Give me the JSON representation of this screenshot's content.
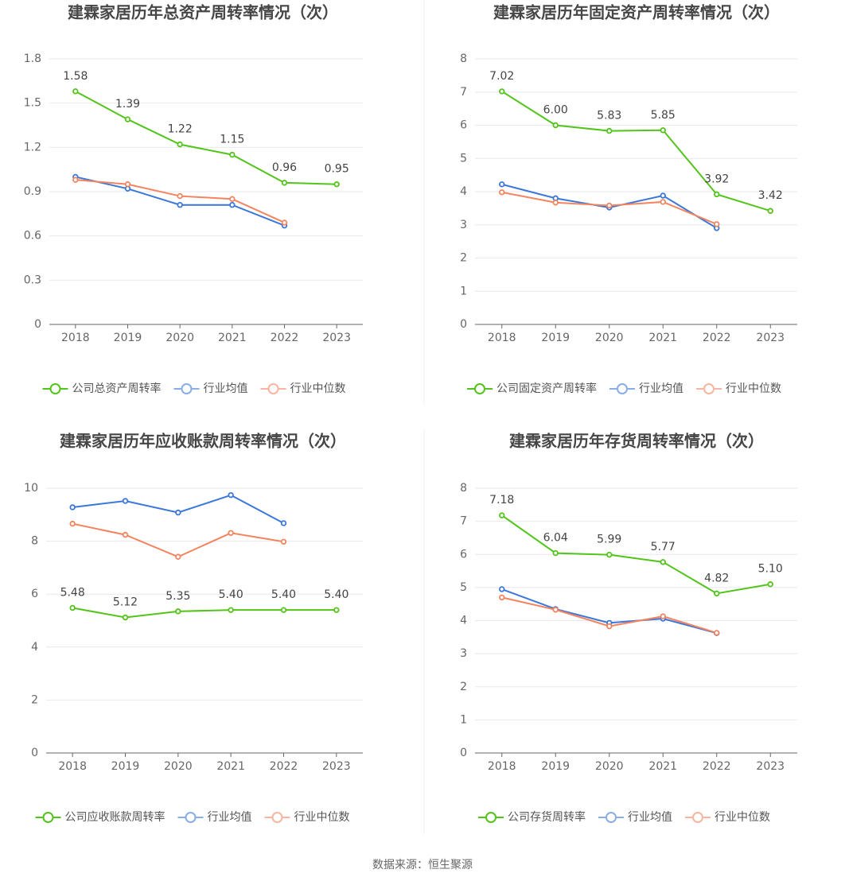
{
  "chart_data": [
    {
      "type": "line",
      "title": "建霖家居历年总资产周转率情况（次）",
      "categories": [
        "2018",
        "2019",
        "2020",
        "2021",
        "2022",
        "2023"
      ],
      "series": [
        {
          "name": "公司总资产周转率",
          "color": "#52c41a",
          "values": [
            1.58,
            1.39,
            1.22,
            1.15,
            0.96,
            0.95
          ],
          "value_labels": [
            "1.58",
            "1.39",
            "1.22",
            "1.15",
            "0.96",
            "0.95"
          ]
        },
        {
          "name": "行业均值",
          "color": "#3a77d9",
          "values": [
            1.0,
            0.92,
            0.81,
            0.81,
            0.67,
            null
          ]
        },
        {
          "name": "行业中位数",
          "color": "#f4845f",
          "values": [
            0.98,
            0.95,
            0.87,
            0.85,
            0.69,
            null
          ]
        }
      ],
      "ylim": [
        0,
        1.8
      ],
      "yticks": [
        0,
        0.3,
        0.6,
        0.9,
        1.2,
        1.5,
        1.8
      ],
      "grid": true,
      "legend": "bottom"
    },
    {
      "type": "line",
      "title": "建霖家居历年固定资产周转率情况（次）",
      "categories": [
        "2018",
        "2019",
        "2020",
        "2021",
        "2022",
        "2023"
      ],
      "series": [
        {
          "name": "公司固定资产周转率",
          "color": "#52c41a",
          "values": [
            7.02,
            6.0,
            5.83,
            5.85,
            3.92,
            3.42
          ],
          "value_labels": [
            "7.02",
            "6.00",
            "5.83",
            "5.85",
            "3.92",
            "3.42"
          ]
        },
        {
          "name": "行业均值",
          "color": "#3a77d9",
          "values": [
            4.22,
            3.8,
            3.52,
            3.88,
            2.9,
            null
          ]
        },
        {
          "name": "行业中位数",
          "color": "#f4845f",
          "values": [
            3.98,
            3.67,
            3.58,
            3.69,
            3.02,
            null
          ]
        }
      ],
      "ylim": [
        0,
        8
      ],
      "yticks": [
        0,
        1,
        2,
        3,
        4,
        5,
        6,
        7,
        8
      ],
      "grid": true,
      "legend": "bottom"
    },
    {
      "type": "line",
      "title": "建霖家居历年应收账款周转率情况（次）",
      "categories": [
        "2018",
        "2019",
        "2020",
        "2021",
        "2022",
        "2023"
      ],
      "series": [
        {
          "name": "公司应收账款周转率",
          "color": "#52c41a",
          "values": [
            5.48,
            5.12,
            5.35,
            5.4,
            5.4,
            5.4
          ],
          "value_labels": [
            "5.48",
            "5.12",
            "5.35",
            "5.40",
            "5.40",
            "5.40"
          ]
        },
        {
          "name": "行业均值",
          "color": "#3a77d9",
          "values": [
            9.28,
            9.52,
            9.08,
            9.74,
            8.68,
            null
          ]
        },
        {
          "name": "行业中位数",
          "color": "#f4845f",
          "values": [
            8.66,
            8.24,
            7.41,
            8.31,
            7.98,
            null
          ]
        }
      ],
      "ylim": [
        0,
        10
      ],
      "yticks": [
        0,
        2,
        4,
        6,
        8,
        10
      ],
      "grid": true,
      "legend": "bottom"
    },
    {
      "type": "line",
      "title": "建霖家居历年存货周转率情况（次）",
      "categories": [
        "2018",
        "2019",
        "2020",
        "2021",
        "2022",
        "2023"
      ],
      "series": [
        {
          "name": "公司存货周转率",
          "color": "#52c41a",
          "values": [
            7.18,
            6.04,
            5.99,
            5.77,
            4.82,
            5.1
          ],
          "value_labels": [
            "7.18",
            "6.04",
            "5.99",
            "5.77",
            "4.82",
            "5.10"
          ]
        },
        {
          "name": "行业均值",
          "color": "#3a77d9",
          "values": [
            4.95,
            4.35,
            3.93,
            4.06,
            3.62,
            null
          ]
        },
        {
          "name": "行业中位数",
          "color": "#f4845f",
          "values": [
            4.7,
            4.33,
            3.83,
            4.13,
            3.63,
            null
          ]
        }
      ],
      "ylim": [
        0,
        8
      ],
      "yticks": [
        0,
        1,
        2,
        3,
        4,
        5,
        6,
        7,
        8
      ],
      "grid": true,
      "legend": "bottom"
    }
  ],
  "source": "数据来源：恒生聚源"
}
